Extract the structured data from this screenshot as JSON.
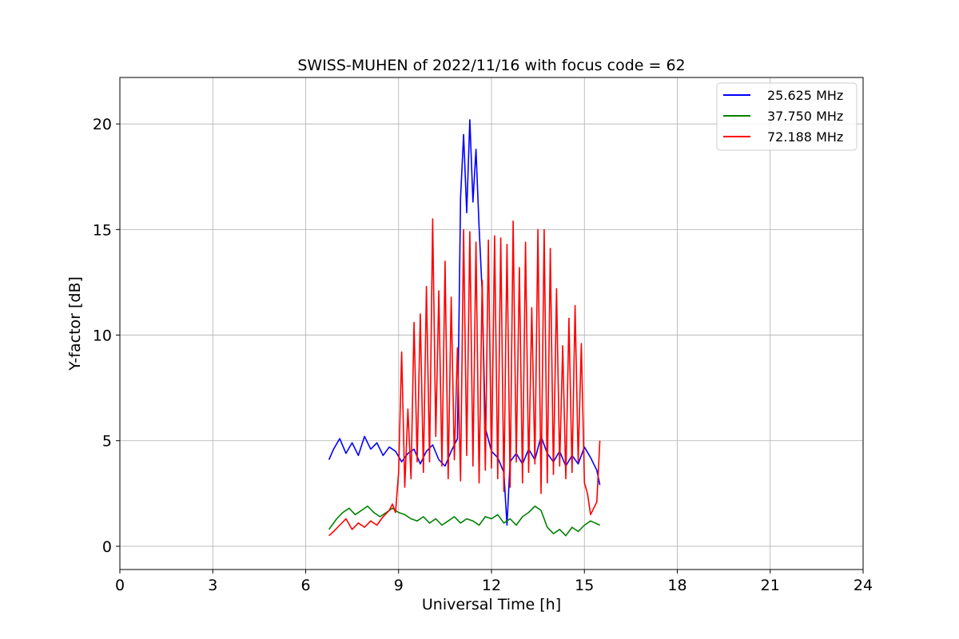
{
  "chart_data": {
    "type": "line",
    "title": "SWISS-MUHEN of 2022/11/16 with focus code = 62",
    "xlabel": "Universal Time [h]",
    "ylabel": "Y-factor [dB]",
    "xlim": [
      0,
      24
    ],
    "ylim": [
      -1.1,
      22.2
    ],
    "xticks": [
      0,
      3,
      6,
      9,
      12,
      15,
      18,
      21,
      24
    ],
    "yticks": [
      0,
      5,
      10,
      15,
      20
    ],
    "grid": true,
    "legend_position": "top-right",
    "series": [
      {
        "name": "25.625 MHz",
        "color": "#0000ff",
        "x": [
          6.75,
          6.9,
          7.1,
          7.3,
          7.5,
          7.7,
          7.9,
          8.1,
          8.3,
          8.5,
          8.7,
          8.9,
          9.1,
          9.3,
          9.5,
          9.7,
          9.9,
          10.1,
          10.3,
          10.5,
          10.7,
          10.9,
          11.0,
          11.1,
          11.2,
          11.3,
          11.4,
          11.5,
          11.6,
          11.7,
          11.8,
          12.0,
          12.2,
          12.4,
          12.5,
          12.6,
          12.8,
          13.0,
          13.2,
          13.4,
          13.6,
          13.8,
          14.0,
          14.2,
          14.4,
          14.6,
          14.8,
          15.0,
          15.2,
          15.4,
          15.5
        ],
        "y": [
          4.1,
          4.6,
          5.1,
          4.4,
          4.9,
          4.3,
          5.2,
          4.6,
          4.9,
          4.3,
          4.7,
          4.5,
          4.0,
          4.4,
          4.6,
          3.9,
          4.5,
          4.8,
          4.1,
          3.8,
          4.5,
          5.1,
          16.5,
          19.5,
          15.8,
          20.2,
          16.3,
          18.8,
          15.1,
          12.0,
          5.6,
          4.5,
          4.2,
          3.5,
          1.0,
          4.0,
          4.4,
          3.9,
          4.6,
          4.1,
          5.2,
          4.4,
          4.0,
          4.5,
          3.8,
          4.3,
          3.9,
          4.7,
          4.2,
          3.6,
          2.9
        ]
      },
      {
        "name": "37.750 MHz",
        "color": "#008000",
        "x": [
          6.75,
          7.0,
          7.2,
          7.4,
          7.6,
          7.8,
          8.0,
          8.2,
          8.4,
          8.6,
          8.8,
          9.0,
          9.2,
          9.4,
          9.6,
          9.8,
          10.0,
          10.2,
          10.4,
          10.6,
          10.8,
          11.0,
          11.2,
          11.4,
          11.6,
          11.8,
          12.0,
          12.2,
          12.4,
          12.6,
          12.8,
          13.0,
          13.2,
          13.4,
          13.6,
          13.8,
          14.0,
          14.2,
          14.4,
          14.6,
          14.8,
          15.0,
          15.2,
          15.5
        ],
        "y": [
          0.8,
          1.3,
          1.6,
          1.8,
          1.5,
          1.7,
          1.9,
          1.6,
          1.4,
          1.6,
          1.8,
          1.6,
          1.5,
          1.3,
          1.2,
          1.4,
          1.1,
          1.3,
          1.0,
          1.2,
          1.4,
          1.1,
          1.3,
          1.2,
          1.0,
          1.4,
          1.3,
          1.5,
          1.1,
          1.3,
          1.0,
          1.4,
          1.6,
          1.9,
          1.7,
          0.9,
          0.6,
          0.8,
          0.5,
          0.9,
          0.7,
          1.0,
          1.2,
          1.0
        ]
      },
      {
        "name": "72.188 MHz",
        "color": "#ff0000",
        "x": [
          6.75,
          6.9,
          7.1,
          7.3,
          7.5,
          7.7,
          7.9,
          8.1,
          8.3,
          8.5,
          8.7,
          8.8,
          8.9,
          9.0,
          9.1,
          9.2,
          9.3,
          9.4,
          9.5,
          9.6,
          9.7,
          9.8,
          9.9,
          10.0,
          10.1,
          10.2,
          10.3,
          10.4,
          10.5,
          10.6,
          10.7,
          10.8,
          10.9,
          11.0,
          11.1,
          11.2,
          11.3,
          11.4,
          11.5,
          11.6,
          11.7,
          11.8,
          11.9,
          12.0,
          12.1,
          12.2,
          12.3,
          12.4,
          12.5,
          12.6,
          12.7,
          12.8,
          12.9,
          13.0,
          13.1,
          13.2,
          13.3,
          13.4,
          13.5,
          13.6,
          13.7,
          13.8,
          13.9,
          14.0,
          14.1,
          14.2,
          14.3,
          14.4,
          14.5,
          14.6,
          14.7,
          14.8,
          14.9,
          15.0,
          15.1,
          15.2,
          15.3,
          15.4,
          15.5
        ],
        "y": [
          0.5,
          0.7,
          1.0,
          1.3,
          0.8,
          1.1,
          0.9,
          1.2,
          1.0,
          1.4,
          1.7,
          2.0,
          1.6,
          3.5,
          9.2,
          2.8,
          6.5,
          3.2,
          10.6,
          4.0,
          11.0,
          3.5,
          12.3,
          4.0,
          15.5,
          5.2,
          12.1,
          3.8,
          13.5,
          3.2,
          11.8,
          4.1,
          9.4,
          3.1,
          15.0,
          4.3,
          14.9,
          3.8,
          14.4,
          3.0,
          12.6,
          3.6,
          14.5,
          3.7,
          14.7,
          3.2,
          14.6,
          2.6,
          14.3,
          2.8,
          15.4,
          4.0,
          13.2,
          3.0,
          14.4,
          3.5,
          11.3,
          3.9,
          15.0,
          2.5,
          15.0,
          3.0,
          14.1,
          3.4,
          12.2,
          3.8,
          9.5,
          3.2,
          10.8,
          3.5,
          11.4,
          4.0,
          9.6,
          3.0,
          2.5,
          1.5,
          1.8,
          2.1,
          5.0
        ]
      }
    ]
  }
}
